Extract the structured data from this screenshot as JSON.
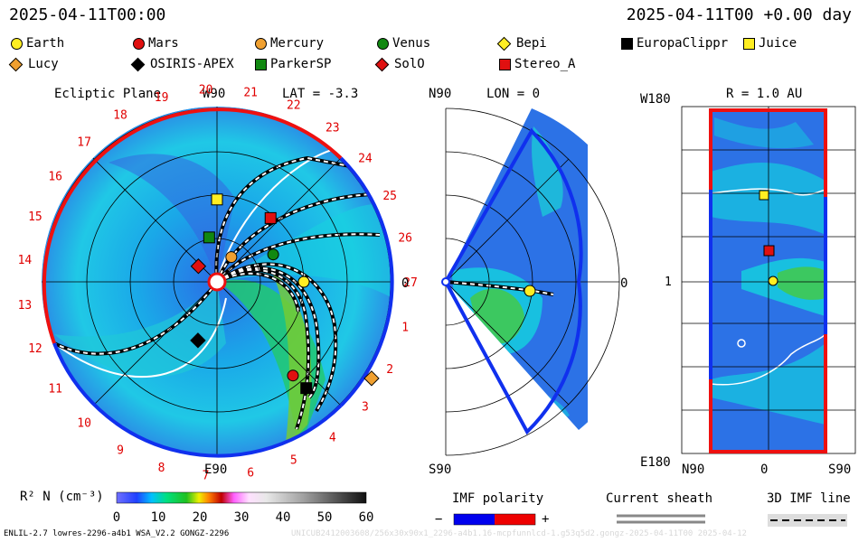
{
  "header": {
    "left_time": "2025-04-11T00:00",
    "right_time": "2025-04-11T00 +0.00 day"
  },
  "legend": [
    {
      "name": "Earth",
      "color": "#ffee22",
      "shape": "circle"
    },
    {
      "name": "Mars",
      "color": "#e01010",
      "shape": "circle"
    },
    {
      "name": "Mercury",
      "color": "#f0a030",
      "shape": "circle"
    },
    {
      "name": "Venus",
      "color": "#118811",
      "shape": "circle"
    },
    {
      "name": "Bepi",
      "color": "#ffee22",
      "shape": "diamond"
    },
    {
      "name": "EuropaClippr",
      "color": "#000000",
      "shape": "square"
    },
    {
      "name": "Juice",
      "color": "#ffee22",
      "shape": "square"
    },
    {
      "name": "Lucy",
      "color": "#f0a030",
      "shape": "diamond"
    },
    {
      "name": "OSIRIS-APEX",
      "color": "#000000",
      "shape": "diamond"
    },
    {
      "name": "ParkerSP",
      "color": "#118811",
      "shape": "square"
    },
    {
      "name": "SolO",
      "color": "#e01010",
      "shape": "diamond"
    },
    {
      "name": "Stereo_A",
      "color": "#e01010",
      "shape": "square"
    }
  ],
  "panels": {
    "ecliptic": {
      "title": "Ecliptic Plane",
      "top_label": "W90",
      "lat_label": "LAT = -3.3",
      "bottom_label": "E90",
      "right_label": "0",
      "carrington": [
        "1",
        "2",
        "3",
        "4",
        "5",
        "6",
        "7",
        "8",
        "9",
        "10",
        "11",
        "12",
        "13",
        "14",
        "15",
        "16",
        "17",
        "18",
        "19",
        "20",
        "21",
        "22",
        "23",
        "24",
        "25",
        "26",
        "27"
      ]
    },
    "meridional": {
      "top_label": "N90",
      "lon_label": "LON = 0",
      "bottom_label": "S90",
      "right_label": "0"
    },
    "sphere": {
      "title": "R = 1.0 AU",
      "top_left": "W180",
      "mid_left": "1",
      "bottom_left": "E180",
      "bottom_labels": [
        "N90",
        "0",
        "S90"
      ]
    }
  },
  "colorbar": {
    "label": "R² N (cm⁻³)",
    "ticks": [
      "0",
      "10",
      "20",
      "30",
      "40",
      "50",
      "60"
    ]
  },
  "imf": {
    "title": "IMF polarity",
    "minus": "−",
    "plus": "+",
    "colors": {
      "negative": "#0000ee",
      "positive": "#ee0000"
    }
  },
  "sheath": {
    "title": "Current sheath"
  },
  "imf3d": {
    "title": "3D IMF line"
  },
  "footer": {
    "model": "ENLIL-2.7 lowres-2296-a4b1 WSA_V2.2 GONGZ-2296",
    "faded": "UNICUB2412003608/256x30x90x1_2296-a4b1.16-mcpfunnlcd-1.g53q5d2.gongz-2025-04-11T00   2025-04-12"
  },
  "chart_data": {
    "type": "heatmap",
    "quantity": "R² N (cm⁻³)",
    "scale_range": [
      0,
      60
    ],
    "bodies_ecliptic": [
      {
        "name": "Earth",
        "r_au": 1.0,
        "lon_deg": 0
      },
      {
        "name": "Mercury",
        "r_au": 0.33,
        "lon_deg": 60
      },
      {
        "name": "Venus",
        "r_au": 0.72,
        "lon_deg": 26
      },
      {
        "name": "Mars",
        "r_au": 1.39,
        "lon_deg": -51
      },
      {
        "name": "Juice",
        "r_au": 0.95,
        "lon_deg": 90
      },
      {
        "name": "ParkerSP",
        "r_au": 0.52,
        "lon_deg": 100
      },
      {
        "name": "SolO",
        "r_au": 0.28,
        "lon_deg": 140
      },
      {
        "name": "OSIRIS-APEX",
        "r_au": 0.71,
        "lon_deg": -108
      },
      {
        "name": "Stereo_A",
        "r_au": 0.96,
        "lon_deg": 50
      },
      {
        "name": "EuropaClippr",
        "r_au": 1.6,
        "lon_deg": -50
      },
      {
        "name": "Lucy",
        "r_au": 2.1,
        "lon_deg": -32
      }
    ]
  }
}
